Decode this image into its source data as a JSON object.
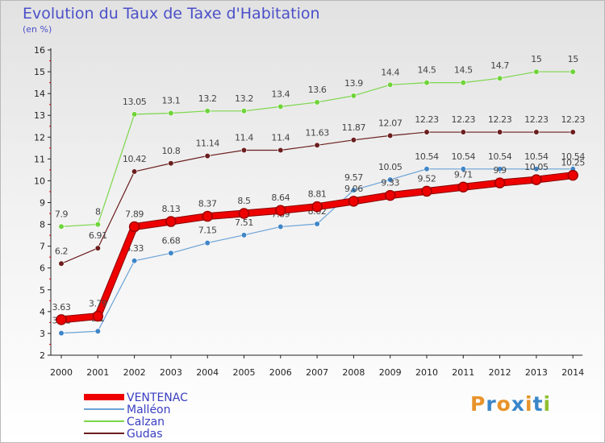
{
  "title": "Evolution du Taux de Taxe d'Habitation",
  "subtitle": "(en %)",
  "logo": {
    "text": "Proxiti",
    "colors": [
      "#e8932a",
      "#3b86c9",
      "#e8932a",
      "#3b86c9",
      "#e8932a",
      "#3b86c9",
      "#8fbf2e"
    ]
  },
  "chart_data": {
    "type": "line",
    "x": [
      "2000",
      "2001",
      "2002",
      "2003",
      "2004",
      "2005",
      "2006",
      "2007",
      "2008",
      "2009",
      "2010",
      "2011",
      "2012",
      "2013",
      "2014"
    ],
    "ylim": [
      2,
      16
    ],
    "yticks": [
      2,
      3,
      4,
      5,
      6,
      7,
      8,
      9,
      10,
      11,
      12,
      13,
      14,
      15,
      16
    ],
    "grid": false,
    "legend_position": "bottom-left",
    "series": [
      {
        "name": "Gudas",
        "color": "#6b1e1e",
        "width": 1.2,
        "values": [
          6.2,
          6.91,
          10.42,
          10.8,
          11.14,
          11.4,
          11.4,
          11.63,
          11.87,
          12.07,
          12.23,
          12.23,
          12.23,
          12.23,
          12.23
        ],
        "labels": [
          "6.2",
          "6.91",
          "10.42",
          "10.8",
          "11.14",
          "11.4",
          "11.4",
          "11.63",
          "11.87",
          "12.07",
          "12.23",
          "12.23",
          "12.23",
          "12.23",
          "12.23"
        ]
      },
      {
        "name": "Calzan",
        "color": "#7cd64a",
        "width": 1.2,
        "values": [
          7.9,
          8,
          13.05,
          13.1,
          13.2,
          13.2,
          13.4,
          13.6,
          13.9,
          14.4,
          14.5,
          14.5,
          14.7,
          15,
          15
        ],
        "labels": [
          "7.9",
          "8",
          "13.05",
          "13.1",
          "13.2",
          "13.2",
          "13.4",
          "13.6",
          "13.9",
          "14.4",
          "14.5",
          "14.5",
          "14.7",
          "15",
          "15"
        ]
      },
      {
        "name": "Malléon",
        "color": "#6aa2d6",
        "width": 1.2,
        "values": [
          3.01,
          3.1,
          6.33,
          6.68,
          7.15,
          7.51,
          7.89,
          8.02,
          9.57,
          10.05,
          10.54,
          10.54,
          10.54,
          10.54,
          10.54
        ],
        "labels": [
          "3.01",
          "3.1",
          "6.33",
          "6.68",
          "7.15",
          "7.51",
          "7.89",
          "8.02",
          "9.57",
          "10.05",
          "10.54",
          "10.54",
          "10.54",
          "10.54",
          "10.54"
        ]
      },
      {
        "name": "VENTENAC",
        "color": "#ee0000",
        "width": 7,
        "values": [
          3.63,
          3.79,
          7.89,
          8.13,
          8.37,
          8.5,
          8.64,
          8.81,
          9.06,
          9.33,
          9.52,
          9.71,
          9.9,
          10.05,
          10.25
        ],
        "labels": [
          "3.63",
          "3.79",
          "7.89",
          "8.13",
          "8.37",
          "8.5",
          "8.64",
          "8.81",
          "9.06",
          "9.33",
          "9.52",
          "9.71",
          "9.9",
          "10.05",
          "10.25"
        ]
      }
    ],
    "legend": [
      "VENTENAC",
      "Malléon",
      "Calzan",
      "Gudas"
    ]
  }
}
